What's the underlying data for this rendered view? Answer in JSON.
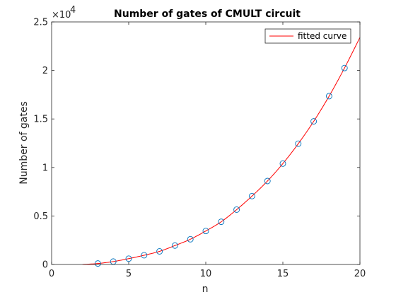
{
  "chart_data": {
    "type": "line",
    "title": "Number of gates of CMULT circuit",
    "xlabel": "n",
    "ylabel": "Number of gates",
    "xlim": [
      0,
      20
    ],
    "ylim": [
      0,
      25000
    ],
    "x_ticks": [
      "0",
      "5",
      "10",
      "15",
      "20"
    ],
    "y_ticks": [
      "0",
      "0.5",
      "1",
      "1.5",
      "2",
      "2.5"
    ],
    "y_multiplier": {
      "base": "×10",
      "exponent": "4"
    },
    "grid": false,
    "box": true,
    "legend": {
      "position": "top-right",
      "entries": [
        "fitted curve"
      ]
    },
    "colors": {
      "markers": "#0072BD",
      "fit": "#FF0000",
      "axes": "#262626"
    },
    "series": [
      {
        "marker": "circle",
        "x": [
          3,
          4,
          5,
          6,
          7,
          8,
          9,
          10,
          11,
          12,
          13,
          14,
          15,
          16,
          17,
          18,
          19
        ],
        "y": [
          100,
          300,
          600,
          950,
          1350,
          1950,
          2600,
          3450,
          4400,
          5650,
          7050,
          8600,
          10400,
          12450,
          14750,
          17350,
          20250
        ]
      },
      {
        "name": "fitted curve",
        "marker": "none",
        "x": [
          2,
          3,
          4,
          5,
          6,
          7,
          8,
          9,
          10,
          11,
          12,
          13,
          14,
          15,
          16,
          17,
          18,
          19,
          20
        ],
        "y": [
          0,
          100,
          300,
          600,
          950,
          1350,
          1950,
          2600,
          3450,
          4400,
          5650,
          7050,
          8600,
          10400,
          12450,
          14750,
          17350,
          20250,
          23400
        ]
      }
    ]
  }
}
